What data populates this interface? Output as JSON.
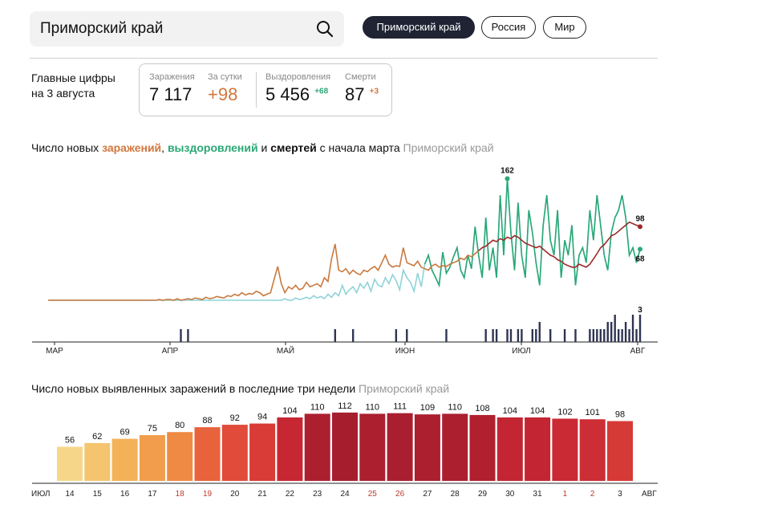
{
  "search": {
    "query": "Приморский край"
  },
  "tabs": [
    {
      "label": "Приморский край",
      "active": true
    },
    {
      "label": "Россия",
      "active": false
    },
    {
      "label": "Мир",
      "active": false
    }
  ],
  "key_figures": {
    "title_line1": "Главные цифры",
    "title_line2": "на 3 августа",
    "infections_label": "Заражения",
    "infections_value": "7 117",
    "per_day_label": "За сутки",
    "per_day_value": "+98",
    "recoveries_label": "Выздоровления",
    "recoveries_value": "5 456",
    "recoveries_delta": "+68",
    "deaths_label": "Смерти",
    "deaths_value": "87",
    "deaths_delta": "+3"
  },
  "colors": {
    "infections": "#c9793f",
    "infections_late": "#9b2a2a",
    "recoveries_light": "#8fd3d8",
    "recoveries": "#2aa876",
    "deaths": "#2f3452",
    "tab_active_bg": "#1f2333"
  },
  "chart1_title": {
    "part1": "Число новых ",
    "infections": "заражений",
    "comma": ", ",
    "recoveries": "выздоровлений",
    "and": " и ",
    "deaths": "смертей",
    "part2": " с начала марта",
    "region": "Приморский край"
  },
  "chart2_title": {
    "text": "Число новых выявленных заражений в последние три недели",
    "region": "Приморский край"
  },
  "chart_data": [
    {
      "type": "line",
      "title": "Число новых заражений, выздоровлений и смертей с начала марта",
      "x_labels": [
        "МАР",
        "АПР",
        "МАЙ",
        "ИЮН",
        "ИЮЛ",
        "АВГ"
      ],
      "ylim": [
        0,
        170
      ],
      "series": [
        {
          "name": "Заражения",
          "values": [
            0,
            0,
            0,
            0,
            0,
            0,
            0,
            0,
            0,
            0,
            0,
            0,
            0,
            0,
            0,
            0,
            0,
            0,
            0,
            0,
            0,
            0,
            0,
            0,
            0,
            0,
            0,
            0,
            0,
            0,
            0,
            1,
            0,
            1,
            1,
            0,
            2,
            0,
            1,
            2,
            1,
            3,
            2,
            1,
            4,
            2,
            3,
            5,
            4,
            3,
            6,
            5,
            8,
            6,
            10,
            7,
            9,
            8,
            12,
            10,
            6,
            8,
            10,
            28,
            45,
            22,
            10,
            18,
            15,
            20,
            14,
            16,
            24,
            18,
            20,
            22,
            18,
            30,
            25,
            55,
            75,
            40,
            38,
            42,
            35,
            40,
            36,
            34,
            40,
            38,
            42,
            45,
            40,
            50,
            60,
            48,
            44,
            46,
            45,
            70,
            50,
            48,
            46,
            52,
            44,
            42,
            40,
            46,
            48,
            44,
            46,
            45,
            48,
            50,
            52,
            56,
            54,
            60,
            58,
            62,
            66,
            70,
            72,
            76,
            80,
            78,
            82,
            80,
            84,
            82,
            86,
            84,
            80,
            76,
            74,
            72,
            70,
            72,
            68,
            64,
            60,
            58,
            54,
            52,
            48,
            46,
            44,
            44,
            48,
            46,
            44,
            48,
            55,
            62,
            70,
            74,
            80,
            86,
            88,
            92,
            96,
            100,
            104,
            102,
            100,
            98
          ]
        },
        {
          "name": "Выздоровления",
          "values": [
            0,
            0,
            0,
            0,
            0,
            0,
            0,
            0,
            0,
            0,
            0,
            0,
            0,
            0,
            0,
            0,
            0,
            0,
            0,
            0,
            0,
            0,
            0,
            0,
            0,
            0,
            0,
            0,
            0,
            0,
            0,
            0,
            0,
            0,
            0,
            0,
            0,
            0,
            0,
            0,
            0,
            0,
            0,
            0,
            0,
            0,
            0,
            0,
            0,
            0,
            0,
            0,
            0,
            0,
            0,
            0,
            0,
            0,
            0,
            0,
            0,
            0,
            0,
            0,
            0,
            0,
            2,
            0,
            0,
            3,
            1,
            2,
            4,
            2,
            6,
            3,
            5,
            2,
            8,
            4,
            10,
            6,
            20,
            8,
            14,
            18,
            10,
            22,
            16,
            24,
            12,
            28,
            20,
            18,
            30,
            22,
            34,
            26,
            14,
            40,
            30,
            24,
            12,
            36,
            18,
            48,
            60,
            40,
            30,
            20,
            64,
            36,
            44,
            58,
            70,
            40,
            30,
            60,
            42,
            98,
            60,
            30,
            110,
            40,
            70,
            30,
            140,
            60,
            162,
            90,
            40,
            130,
            60,
            30,
            120,
            90,
            50,
            20,
            100,
            140,
            80,
            60,
            120,
            30,
            80,
            60,
            100,
            20,
            60,
            70,
            50,
            120,
            80,
            140,
            100,
            60,
            40,
            90,
            110,
            120,
            140,
            110,
            60,
            70,
            50,
            68
          ]
        },
        {
          "name": "Смерти",
          "values": [
            0,
            0,
            0,
            0,
            0,
            0,
            0,
            0,
            0,
            0,
            0,
            0,
            0,
            0,
            0,
            0,
            0,
            0,
            0,
            0,
            0,
            0,
            0,
            0,
            0,
            0,
            0,
            0,
            0,
            0,
            0,
            0,
            0,
            0,
            0,
            0,
            0,
            1,
            0,
            1,
            0,
            0,
            0,
            0,
            0,
            0,
            0,
            0,
            0,
            0,
            0,
            0,
            0,
            0,
            0,
            0,
            0,
            0,
            0,
            0,
            0,
            0,
            0,
            0,
            0,
            0,
            0,
            0,
            0,
            0,
            0,
            0,
            0,
            0,
            0,
            0,
            0,
            0,
            0,
            0,
            1,
            0,
            0,
            0,
            0,
            1,
            0,
            0,
            0,
            0,
            0,
            0,
            0,
            0,
            0,
            0,
            0,
            1,
            0,
            0,
            1,
            0,
            0,
            0,
            0,
            0,
            0,
            0,
            0,
            0,
            0,
            1,
            0,
            0,
            0,
            0,
            0,
            0,
            0,
            0,
            0,
            0,
            1,
            0,
            1,
            1,
            0,
            0,
            1,
            1,
            0,
            1,
            1,
            0,
            0,
            1,
            1,
            2,
            0,
            0,
            1,
            0,
            0,
            0,
            1,
            0,
            0,
            1,
            0,
            0,
            0,
            1,
            1,
            1,
            1,
            1,
            2,
            2,
            3,
            1,
            1,
            2,
            1,
            3,
            1,
            3
          ]
        }
      ],
      "annotations": {
        "recoveries_peak": "162",
        "last_infections": "98",
        "last_recoveries": "68",
        "last_deaths": "3"
      }
    },
    {
      "type": "bar",
      "title": "Число новых выявленных заражений в последние три недели",
      "x_start_label": "ИЮЛ",
      "x_end_label": "АВГ",
      "categories": [
        "14",
        "15",
        "16",
        "17",
        "18",
        "19",
        "20",
        "21",
        "22",
        "23",
        "24",
        "25",
        "26",
        "27",
        "28",
        "29",
        "30",
        "31",
        "1",
        "2",
        "3"
      ],
      "weekend": [
        false,
        false,
        false,
        false,
        true,
        true,
        false,
        false,
        false,
        false,
        false,
        true,
        true,
        false,
        false,
        false,
        false,
        false,
        true,
        true,
        false
      ],
      "values": [
        56,
        62,
        69,
        75,
        80,
        88,
        92,
        94,
        104,
        110,
        112,
        110,
        111,
        109,
        110,
        108,
        104,
        104,
        102,
        101,
        98
      ],
      "bar_colors": [
        "#f6d78a",
        "#f5c46e",
        "#f3b258",
        "#f19d4c",
        "#ef8a44",
        "#e8623c",
        "#e04b3a",
        "#d93b36",
        "#c62733",
        "#ac1f2f",
        "#a61e2e",
        "#ab1f2f",
        "#a91f2f",
        "#ab1f2f",
        "#ab1f2f",
        "#b0202f",
        "#c42532",
        "#c42532",
        "#ca2a33",
        "#cd2d34",
        "#d63a36"
      ],
      "ylim": [
        0,
        120
      ]
    }
  ]
}
